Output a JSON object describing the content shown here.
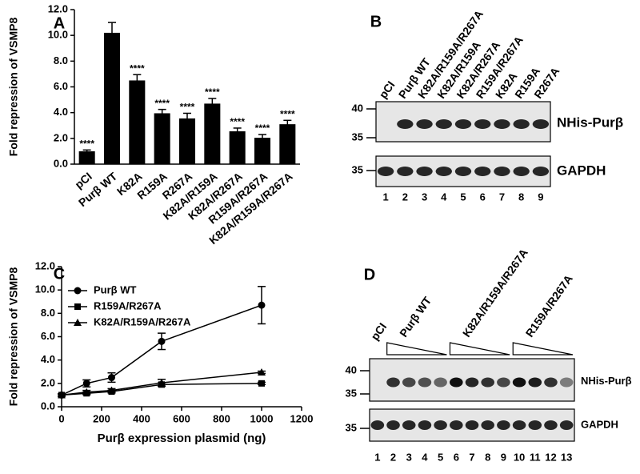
{
  "chart_data": [
    {
      "type": "bar",
      "panel": "A",
      "ylabel": "Fold repression of VSMP8",
      "categories": [
        "pCI",
        "Purβ WT",
        "K82A",
        "R159A",
        "R267A",
        "K82A/R159A",
        "K82A/R267A",
        "R159A/R267A",
        "K82A/R159A/R267A"
      ],
      "values": [
        1.0,
        10.2,
        6.5,
        3.95,
        3.55,
        4.7,
        2.55,
        2.05,
        3.1
      ],
      "errors": [
        0.1,
        0.8,
        0.45,
        0.3,
        0.4,
        0.4,
        0.25,
        0.25,
        0.3
      ],
      "significance": [
        "****",
        null,
        "****",
        "****",
        "****",
        "****",
        "****",
        "****",
        "****"
      ],
      "color": "#000000",
      "ylim": [
        0,
        12
      ],
      "yticks": [
        {
          "value": 0,
          "label": "0.0"
        },
        {
          "value": 2,
          "label": "2.0"
        },
        {
          "value": 4,
          "label": "4.0"
        },
        {
          "value": 6,
          "label": "6.0"
        },
        {
          "value": 8,
          "label": "8.0"
        },
        {
          "value": 10,
          "label": "10.0"
        },
        {
          "value": 12,
          "label": "12.0"
        }
      ]
    },
    {
      "type": "line",
      "panel": "C",
      "ylabel": "Fold repression of VSMP8",
      "xlabel": "Purβ expression plasmid (ng)",
      "x": [
        0,
        125,
        250,
        500,
        1000
      ],
      "xlim": [
        0,
        1200
      ],
      "xticks": [
        0,
        200,
        400,
        600,
        800,
        1000,
        1200
      ],
      "ylim": [
        0,
        12
      ],
      "yticks": [
        {
          "value": 0,
          "label": "0.0"
        },
        {
          "value": 2,
          "label": "2.0"
        },
        {
          "value": 4,
          "label": "4.0"
        },
        {
          "value": 6,
          "label": "6.0"
        },
        {
          "value": 8,
          "label": "8.0"
        },
        {
          "value": 10,
          "label": "10.0"
        },
        {
          "value": 12,
          "label": "12.0"
        }
      ],
      "legend": "upper left",
      "series": [
        {
          "name": "Purβ WT",
          "color": "#000000",
          "marker": "circle",
          "values": [
            1.0,
            2.0,
            2.5,
            5.6,
            8.7
          ],
          "errors": [
            0.1,
            0.3,
            0.4,
            0.7,
            1.6
          ]
        },
        {
          "name": "R159A/R267A",
          "color": "#000000",
          "marker": "square",
          "values": [
            1.0,
            1.15,
            1.3,
            1.9,
            2.0
          ],
          "errors": [
            0.1,
            0.1,
            0.1,
            0.15,
            0.1
          ]
        },
        {
          "name": "K82A/R159A/R267A",
          "color": "#000000",
          "marker": "triangle",
          "values": [
            1.0,
            1.25,
            1.4,
            2.05,
            2.95
          ],
          "errors": [
            0.1,
            0.15,
            0.15,
            0.3,
            0.1
          ]
        }
      ]
    }
  ],
  "blots": [
    {
      "panel": "B",
      "lanes": [
        "pCI",
        "Purβ WT",
        "K82A/R159A/R267A",
        "K82A/R159A",
        "K82A/R267A",
        "R159A/R267A",
        "K82A",
        "R159A",
        "R267A"
      ],
      "markers_upper": [
        40,
        35
      ],
      "markers_lower": [
        35
      ],
      "band_labels": [
        "NHis-Purβ",
        "GAPDH"
      ],
      "lane_numbers": [
        1,
        2,
        3,
        4,
        5,
        6,
        7,
        8,
        9
      ]
    },
    {
      "panel": "D",
      "lanes": [
        "pCI",
        "Purβ WT",
        "K82A/R159A/R267A",
        "R159A/R267A"
      ],
      "markers_upper": [
        40,
        35
      ],
      "markers_lower": [
        35
      ],
      "band_labels": [
        "NHis-Purβ",
        "GAPDH"
      ],
      "lane_numbers": [
        1,
        2,
        3,
        4,
        5,
        6,
        7,
        8,
        9,
        10,
        11,
        12,
        13
      ]
    }
  ]
}
